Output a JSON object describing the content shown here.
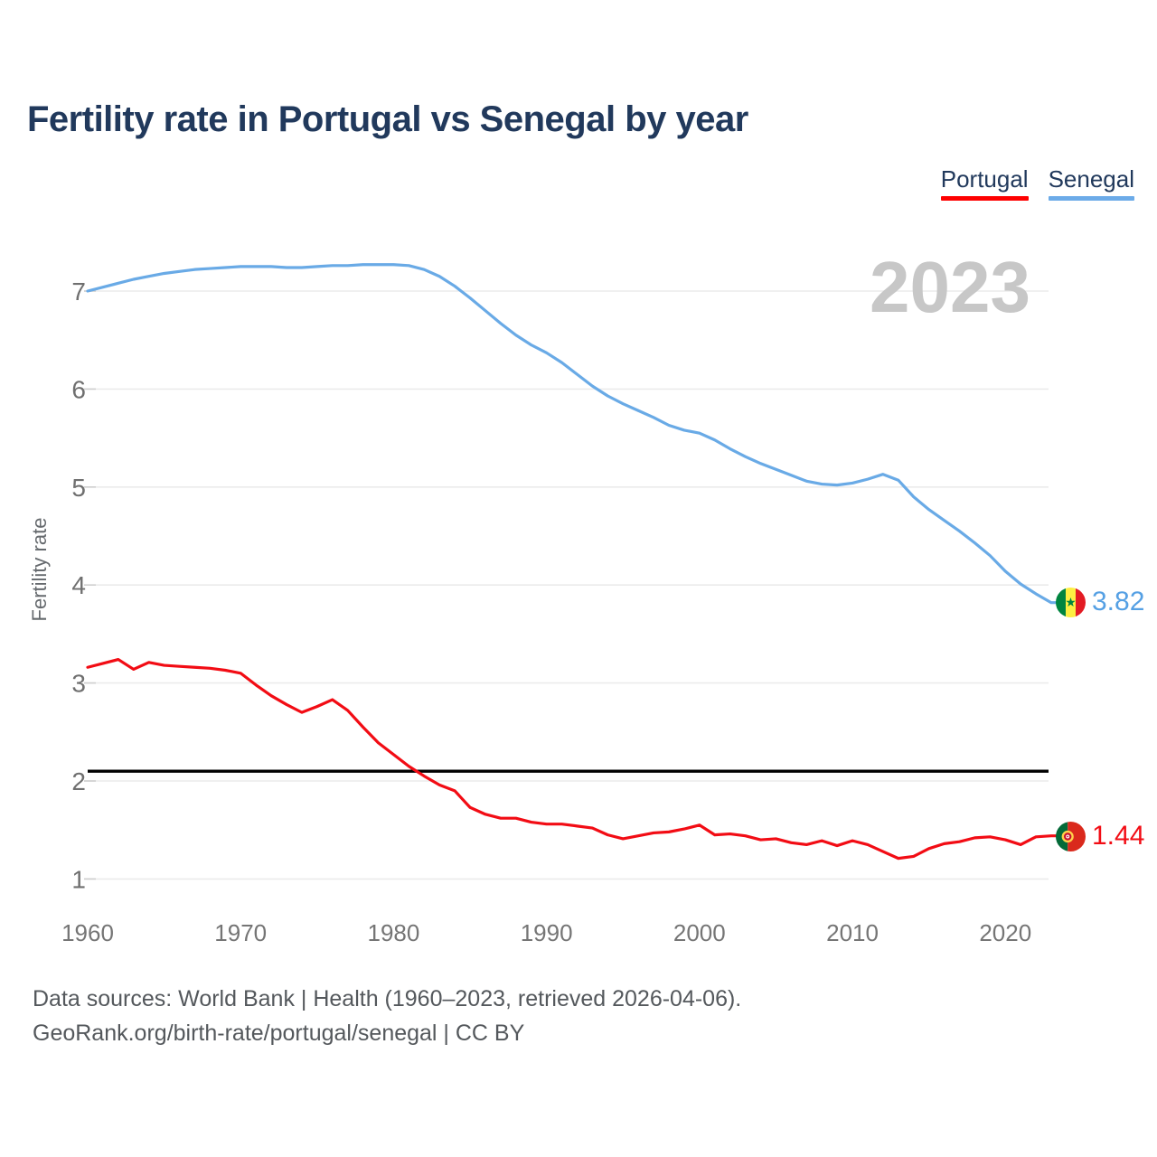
{
  "title": "Fertility rate in Portugal vs Senegal by year",
  "legend": {
    "items": [
      {
        "label": "Portugal",
        "color": "#fe0000"
      },
      {
        "label": "Senegal",
        "color": "#6cabe8"
      }
    ]
  },
  "watermark": "2023",
  "end_labels": {
    "senegal": {
      "value": "3.82",
      "flag": "senegal-flag"
    },
    "portugal": {
      "value": "1.44",
      "flag": "portugal-flag"
    }
  },
  "footer": {
    "line1": "Data sources: World Bank | Health (1960–2023, retrieved 2026-04-06).",
    "line2": "GeoRank.org/birth-rate/portugal/senegal | CC BY"
  },
  "chart_data": {
    "type": "line",
    "title": "Fertility rate in Portugal vs Senegal by year",
    "xlabel": "",
    "ylabel": "Fertility rate",
    "grid": true,
    "legend_position": "top-right",
    "ylim": [
      0.8,
      7.45
    ],
    "y_ticks": [
      1,
      2,
      3,
      4,
      5,
      6,
      7
    ],
    "x_ticks": [
      1960,
      1970,
      1980,
      1990,
      2000,
      2010,
      2020
    ],
    "reference_line": {
      "value": 2.1,
      "color": "#000000"
    },
    "x": [
      1960,
      1961,
      1962,
      1963,
      1964,
      1965,
      1966,
      1967,
      1968,
      1969,
      1970,
      1971,
      1972,
      1973,
      1974,
      1975,
      1976,
      1977,
      1978,
      1979,
      1980,
      1981,
      1982,
      1983,
      1984,
      1985,
      1986,
      1987,
      1988,
      1989,
      1990,
      1991,
      1992,
      1993,
      1994,
      1995,
      1996,
      1997,
      1998,
      1999,
      2000,
      2001,
      2002,
      2003,
      2004,
      2005,
      2006,
      2007,
      2008,
      2009,
      2010,
      2011,
      2012,
      2013,
      2014,
      2015,
      2016,
      2017,
      2018,
      2019,
      2020,
      2021,
      2022,
      2023
    ],
    "series": [
      {
        "name": "Senegal",
        "color": "#69aae6",
        "final_value": 3.82,
        "values": [
          7.0,
          7.04,
          7.08,
          7.12,
          7.15,
          7.18,
          7.2,
          7.22,
          7.23,
          7.24,
          7.25,
          7.25,
          7.25,
          7.24,
          7.24,
          7.25,
          7.26,
          7.26,
          7.27,
          7.27,
          7.27,
          7.26,
          7.22,
          7.15,
          7.05,
          6.93,
          6.8,
          6.67,
          6.55,
          6.45,
          6.37,
          6.27,
          6.15,
          6.03,
          5.93,
          5.85,
          5.78,
          5.71,
          5.63,
          5.58,
          5.55,
          5.48,
          5.39,
          5.31,
          5.24,
          5.18,
          5.12,
          5.06,
          5.03,
          5.02,
          5.04,
          5.08,
          5.13,
          5.07,
          4.9,
          4.77,
          4.66,
          4.55,
          4.43,
          4.3,
          4.14,
          4.01,
          3.91,
          3.82
        ]
      },
      {
        "name": "Portugal",
        "color": "#f20c14",
        "final_value": 1.44,
        "values": [
          3.16,
          3.2,
          3.24,
          3.14,
          3.21,
          3.18,
          3.17,
          3.16,
          3.15,
          3.13,
          3.1,
          2.98,
          2.87,
          2.78,
          2.7,
          2.76,
          2.83,
          2.72,
          2.55,
          2.39,
          2.27,
          2.15,
          2.05,
          1.96,
          1.9,
          1.73,
          1.66,
          1.62,
          1.62,
          1.58,
          1.56,
          1.56,
          1.54,
          1.52,
          1.45,
          1.41,
          1.44,
          1.47,
          1.48,
          1.51,
          1.55,
          1.45,
          1.46,
          1.44,
          1.4,
          1.41,
          1.37,
          1.35,
          1.39,
          1.34,
          1.39,
          1.35,
          1.28,
          1.21,
          1.23,
          1.31,
          1.36,
          1.38,
          1.42,
          1.43,
          1.4,
          1.35,
          1.43,
          1.44
        ]
      }
    ]
  }
}
